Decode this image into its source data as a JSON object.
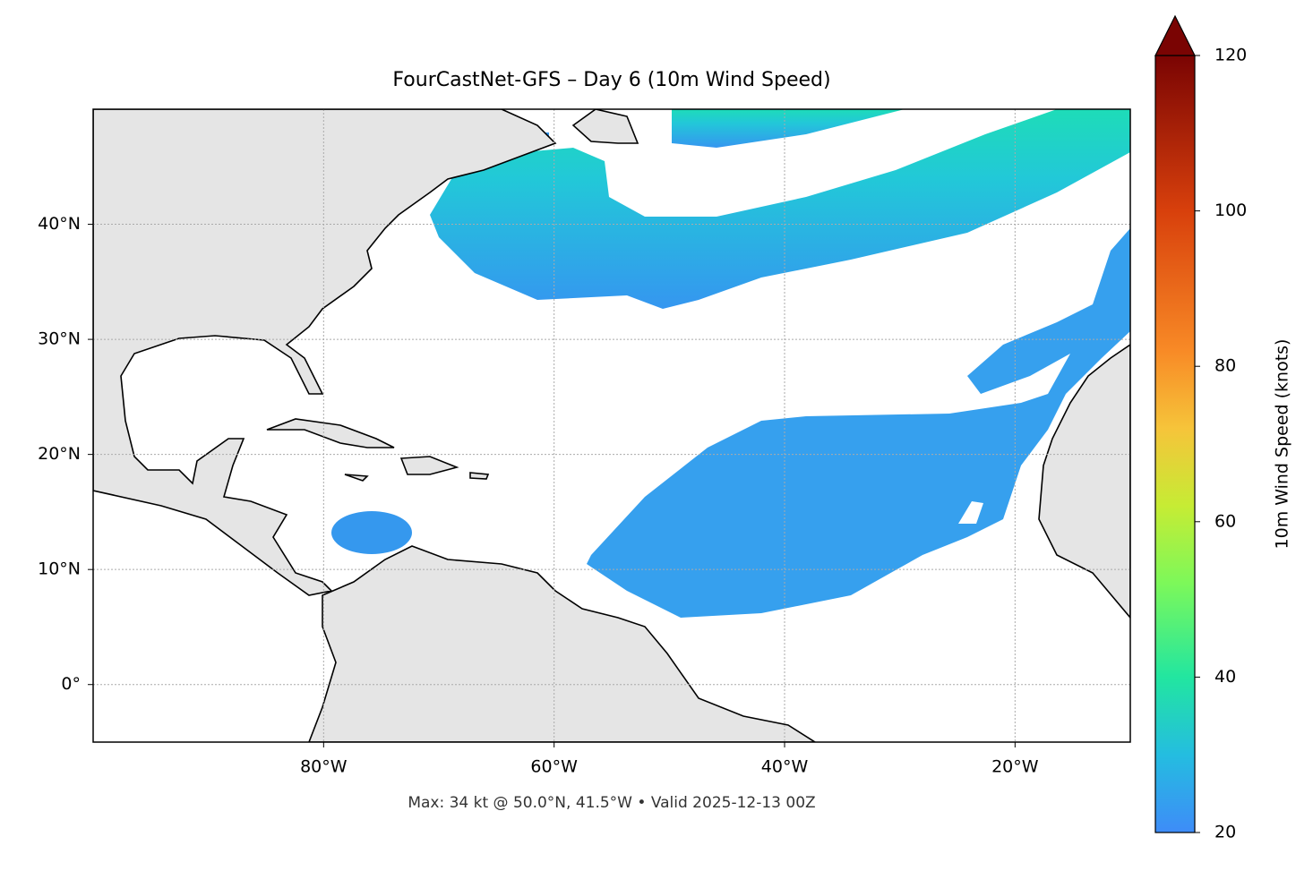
{
  "chart_data": {
    "type": "map",
    "title": "FourCastNet-GFS – Day 6 (10m Wind Speed)",
    "annotation": "Max: 34 kt @ 50.0°N, 41.5°W • Valid 2025-12-13 00Z",
    "xlim": [
      -100,
      -10
    ],
    "ylim": [
      -5,
      50
    ],
    "xticks": [
      {
        "value": -80,
        "label": "80°W"
      },
      {
        "value": -60,
        "label": "60°W"
      },
      {
        "value": -40,
        "label": "40°W"
      },
      {
        "value": -20,
        "label": "20°W"
      }
    ],
    "yticks": [
      {
        "value": 0,
        "label": "0°"
      },
      {
        "value": 10,
        "label": "10°N"
      },
      {
        "value": 20,
        "label": "20°N"
      },
      {
        "value": 30,
        "label": "30°N"
      },
      {
        "value": 40,
        "label": "40°N"
      }
    ],
    "grid": true,
    "colorbar": {
      "label": "10m Wind Speed (knots)",
      "lim": [
        20,
        120
      ],
      "ticks": [
        20,
        40,
        60,
        80,
        100,
        120
      ],
      "extend": "max"
    }
  }
}
